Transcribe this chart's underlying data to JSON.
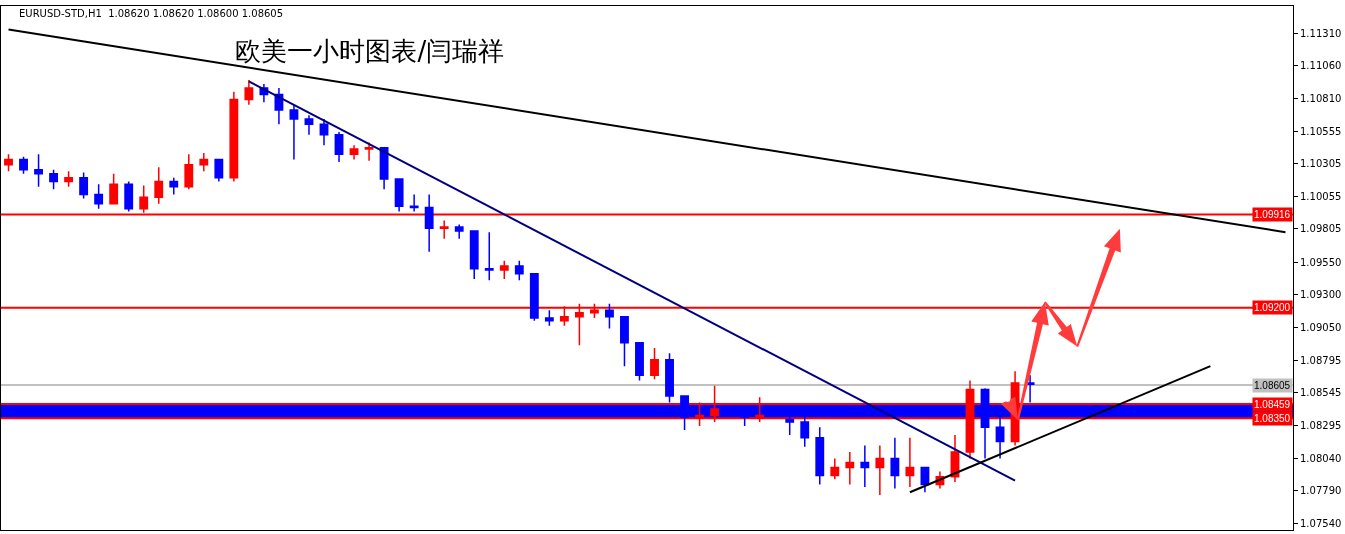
{
  "chart_data": {
    "type": "candlestick",
    "title": "欧美一小时图表/闫瑞祥",
    "subtitle": "EURUSD-STD,H1  1.08620 1.08620 1.08600 1.08605",
    "categories": [
      null,
      null,
      null,
      null,
      null,
      null,
      null,
      null,
      null,
      null,
      null,
      null,
      null,
      null,
      null,
      null,
      null,
      null,
      null,
      null,
      null,
      null,
      null,
      null,
      null,
      null,
      null,
      null,
      null,
      null,
      null,
      null,
      null,
      null,
      null,
      null,
      null,
      null,
      null,
      null,
      null,
      null,
      null,
      null,
      null,
      null,
      null,
      null,
      null,
      null,
      null,
      null,
      null,
      null,
      null,
      null,
      null,
      null,
      null,
      null,
      null,
      null,
      null,
      null,
      null,
      null,
      null,
      null,
      null,
      null,
      null,
      null,
      null,
      null,
      null,
      null,
      null,
      null,
      null,
      null,
      null,
      null,
      null,
      null,
      null,
      null
    ],
    "ohlc": [
      [
        1.103,
        1.1038,
        1.1025,
        1.1034
      ],
      [
        1.1034,
        1.1036,
        1.1023,
        1.1026
      ],
      [
        1.1026,
        1.1038,
        1.1013,
        1.1023
      ],
      [
        1.1023,
        1.1026,
        1.1011,
        1.1017
      ],
      [
        1.1017,
        1.1025,
        1.1013,
        1.102
      ],
      [
        1.102,
        1.1024,
        1.1004,
        1.1007
      ],
      [
        1.1007,
        1.1015,
        1.0996,
        1.1
      ],
      [
        1.1,
        1.1023,
        1.1,
        1.1015
      ],
      [
        1.1015,
        1.1017,
        1.0994,
        1.0996
      ],
      [
        1.0996,
        1.1014,
        1.0993,
        1.1005
      ],
      [
        1.1005,
        1.1028,
        1.1,
        1.1017
      ],
      [
        1.1017,
        1.102,
        1.1007,
        1.1013
      ],
      [
        1.1013,
        1.1038,
        1.1011,
        1.103
      ],
      [
        1.103,
        1.1039,
        1.1025,
        1.1034
      ],
      [
        1.1034,
        1.1034,
        1.1017,
        1.102
      ],
      [
        1.102,
        1.1086,
        1.1017,
        1.108
      ],
      [
        1.108,
        1.1095,
        1.1076,
        1.1089
      ],
      [
        1.1089,
        1.1092,
        1.1078,
        1.1084
      ],
      [
        1.1084,
        1.1089,
        1.1061,
        1.1072
      ],
      [
        1.1072,
        1.1076,
        1.1034,
        1.1065
      ],
      [
        1.1065,
        1.1068,
        1.1053,
        1.1061
      ],
      [
        1.1061,
        1.1065,
        1.1045,
        1.1053
      ],
      [
        1.1053,
        1.1055,
        1.1032,
        1.1038
      ],
      [
        1.1038,
        1.1045,
        1.1034,
        1.1042
      ],
      [
        1.1042,
        1.1047,
        1.1033,
        1.1043
      ],
      [
        1.1043,
        1.1043,
        1.1011,
        1.1019
      ],
      [
        1.1019,
        1.1019,
        1.0994,
        1.0998
      ],
      [
        1.0998,
        1.1007,
        1.0994,
        1.0997
      ],
      [
        1.0997,
        1.1007,
        1.0963,
        1.0981
      ],
      [
        1.0981,
        1.0987,
        1.0973,
        1.0982
      ],
      [
        1.0982,
        1.0984,
        1.0973,
        1.0979
      ],
      [
        1.0979,
        1.0979,
        1.0942,
        1.095
      ],
      [
        1.095,
        1.0978,
        1.0941,
        1.0949
      ],
      [
        1.0949,
        1.0956,
        1.0942,
        1.0952
      ],
      [
        1.0952,
        1.0956,
        1.0941,
        1.0946
      ],
      [
        1.0946,
        1.0946,
        1.091,
        1.0912
      ],
      [
        1.0912,
        1.0918,
        1.0906,
        1.091
      ],
      [
        1.091,
        1.0921,
        1.0906,
        1.0913
      ],
      [
        1.0913,
        1.0923,
        1.0891,
        1.0916
      ],
      [
        1.0916,
        1.0923,
        1.0912,
        1.0918
      ],
      [
        1.0918,
        1.0923,
        1.0904,
        1.0913
      ],
      [
        1.0913,
        1.0913,
        1.0875,
        1.0893
      ],
      [
        1.0893,
        1.0893,
        1.0864,
        1.0868
      ],
      [
        1.0868,
        1.0889,
        1.0865,
        1.088
      ],
      [
        1.088,
        1.0885,
        1.0847,
        1.0852
      ],
      [
        1.0852,
        1.0852,
        1.0826,
        1.0836
      ],
      [
        1.0836,
        1.0847,
        1.0829,
        1.0837
      ],
      [
        1.0837,
        1.086,
        1.0832,
        1.0842
      ],
      null,
      [
        1.0837,
        1.0845,
        1.0829,
        1.0836
      ],
      [
        1.0836,
        1.0851,
        1.0832,
        1.0837
      ],
      null,
      [
        1.0834,
        1.0837,
        1.0822,
        1.0832
      ],
      [
        1.0832,
        1.0837,
        1.0813,
        1.082
      ],
      [
        1.082,
        1.0828,
        1.0784,
        1.0791
      ],
      [
        1.0791,
        1.0804,
        1.0788,
        1.0797
      ],
      [
        1.0797,
        1.0809,
        1.0784,
        1.0801
      ],
      [
        1.0801,
        1.0814,
        1.0782,
        1.0797
      ],
      [
        1.0797,
        1.0814,
        1.0776,
        1.0804
      ],
      [
        1.0804,
        1.082,
        1.0781,
        1.0791
      ],
      [
        1.0791,
        1.082,
        1.0782,
        1.0797
      ],
      [
        1.0797,
        1.0797,
        1.0778,
        1.0784
      ],
      [
        1.0784,
        1.0794,
        1.0781,
        1.079
      ],
      [
        1.079,
        1.0822,
        1.0786,
        1.0809
      ],
      [
        1.0809,
        1.0864,
        1.0804,
        1.0857
      ],
      [
        1.0857,
        1.0858,
        1.0804,
        1.0828
      ],
      [
        1.0828,
        1.0836,
        1.0804,
        1.0817
      ],
      [
        1.0817,
        1.0871,
        1.0814,
        1.0862
      ],
      [
        1.0862,
        1.0868,
        1.0847,
        1.0861
      ],
      null,
      null,
      null,
      null,
      null,
      null,
      null,
      null,
      null,
      null,
      null,
      null,
      null,
      null,
      null,
      null,
      null
    ],
    "colors": [
      "#ff0000",
      "#0000ff",
      "#0000ff",
      "#0000ff",
      "#ff0000",
      "#0000ff",
      "#0000ff",
      "#ff0000",
      "#0000ff",
      "#ff0000",
      "#ff0000",
      "#0000ff",
      "#ff0000",
      "#ff0000",
      "#0000ff",
      "#ff0000",
      "#ff0000",
      "#0000ff",
      "#0000ff",
      "#0000ff",
      "#0000ff",
      "#0000ff",
      "#0000ff",
      "#ff0000",
      "#ff0000",
      "#0000ff",
      "#0000ff",
      "#0000ff",
      "#0000ff",
      "#ff0000",
      "#0000ff",
      "#0000ff",
      "#0000ff",
      "#ff0000",
      "#0000ff",
      "#0000ff",
      "#0000ff",
      "#ff0000",
      "#ff0000",
      "#ff0000",
      "#0000ff",
      "#0000ff",
      "#0000ff",
      "#ff0000",
      "#0000ff",
      "#0000ff",
      "#ff0000",
      "#ff0000",
      null,
      "#0000ff",
      "#ff0000",
      null,
      "#0000ff",
      "#0000ff",
      "#0000ff",
      "#ff0000",
      "#ff0000",
      "#0000ff",
      "#ff0000",
      "#0000ff",
      "#ff0000",
      "#0000ff",
      "#ff0000",
      "#ff0000",
      "#ff0000",
      "#0000ff",
      "#0000ff",
      "#ff0000",
      "#0000ff",
      null,
      null,
      null,
      null,
      null,
      null,
      null,
      null,
      null,
      null,
      null,
      null,
      null,
      null,
      null,
      null,
      null
    ],
    "series": [
      {
        "type": "line",
        "color": "#000000",
        "values": [
          1.1134,
          null,
          null,
          null,
          null,
          null,
          null,
          null,
          null,
          null,
          null,
          null,
          null,
          null,
          null,
          null,
          null,
          null,
          null,
          null,
          null,
          null,
          null,
          null,
          null,
          null,
          null,
          null,
          null,
          null,
          null,
          null,
          null,
          null,
          null,
          null,
          null,
          null,
          null,
          null,
          null,
          null,
          null,
          null,
          null,
          null,
          null,
          null,
          null,
          null,
          null,
          null,
          null,
          null,
          null,
          null,
          null,
          null,
          null,
          null,
          null,
          null,
          null,
          null,
          null,
          null,
          null,
          null,
          null,
          null,
          null,
          null,
          null,
          null,
          null,
          null,
          null,
          null,
          null,
          null,
          null,
          null,
          null,
          null,
          null,
          1.0978
        ]
      },
      {
        "type": "line",
        "color": "#000080",
        "values": [
          null,
          null,
          null,
          null,
          null,
          null,
          null,
          null,
          null,
          null,
          null,
          null,
          null,
          null,
          null,
          null,
          1.1094,
          null,
          null,
          null,
          null,
          null,
          null,
          null,
          null,
          null,
          null,
          null,
          null,
          null,
          null,
          null,
          null,
          null,
          null,
          null,
          null,
          null,
          null,
          null,
          null,
          null,
          null,
          null,
          null,
          null,
          null,
          null,
          null,
          null,
          null,
          null,
          null,
          null,
          null,
          null,
          null,
          null,
          null,
          null,
          null,
          null,
          null,
          null,
          null,
          null,
          null,
          1.0787,
          null,
          null,
          null,
          null,
          null,
          null,
          null,
          null,
          null,
          null,
          null,
          null,
          null,
          null,
          null,
          null,
          null,
          null
        ]
      },
      {
        "type": "line",
        "color": "#000000",
        "values": [
          null,
          null,
          null,
          null,
          null,
          null,
          null,
          null,
          null,
          null,
          null,
          null,
          null,
          null,
          null,
          null,
          null,
          null,
          null,
          null,
          null,
          null,
          null,
          null,
          null,
          null,
          null,
          null,
          null,
          null,
          null,
          null,
          null,
          null,
          null,
          null,
          null,
          null,
          null,
          null,
          null,
          null,
          null,
          null,
          null,
          null,
          null,
          null,
          null,
          null,
          null,
          null,
          null,
          null,
          null,
          null,
          null,
          null,
          null,
          null,
          1.0778,
          null,
          null,
          null,
          null,
          null,
          null,
          null,
          null,
          null,
          null,
          null,
          null,
          null,
          null,
          null,
          null,
          null,
          null,
          null,
          1.0875,
          null,
          null,
          null,
          null,
          null
        ]
      }
    ],
    "ylim": [
      1.0749,
      1.1152
    ],
    "yticks": [
      {
        "value": 1.1131,
        "label": "1.11310"
      },
      {
        "value": 1.1106,
        "label": "1.11060"
      },
      {
        "value": 1.1081,
        "label": "1.10810"
      },
      {
        "value": 1.10555,
        "label": "1.10555"
      },
      {
        "value": 1.10305,
        "label": "1.10305"
      },
      {
        "value": 1.10055,
        "label": "1.10055"
      },
      {
        "value": 1.09805,
        "label": "1.09805"
      },
      {
        "value": 1.0955,
        "label": "1.09550"
      },
      {
        "value": 1.093,
        "label": "1.09300"
      },
      {
        "value": 1.0905,
        "label": "1.09050"
      },
      {
        "value": 1.08795,
        "label": "1.08795"
      },
      {
        "value": 1.08545,
        "label": "1.08545"
      },
      {
        "value": 1.08295,
        "label": "1.08295"
      },
      {
        "value": 1.0804,
        "label": "1.08040"
      },
      {
        "value": 1.0779,
        "label": "1.07790"
      },
      {
        "value": 1.0754,
        "label": "1.07540"
      }
    ],
    "ref_lines": [
      {
        "axis": "y",
        "value": 1.09916,
        "label": "1.09916",
        "color": "#ff0000"
      },
      {
        "axis": "y",
        "value": 1.092,
        "label": "1.09200",
        "color": "#ff0000"
      },
      {
        "axis": "y",
        "value": 1.08605,
        "label": "1.08605",
        "color": "#c0c0c0"
      },
      {
        "axis": "y",
        "value": 1.08459,
        "label": "1.08459",
        "color": "#ff0000"
      },
      {
        "axis": "y",
        "value": 1.0835,
        "label": "1.08350",
        "color": "#ff0000"
      }
    ],
    "bands": [
      {
        "axis": "y",
        "from": 1.0835,
        "to": 1.08459,
        "color": "#0000ff"
      }
    ],
    "grid": false
  }
}
